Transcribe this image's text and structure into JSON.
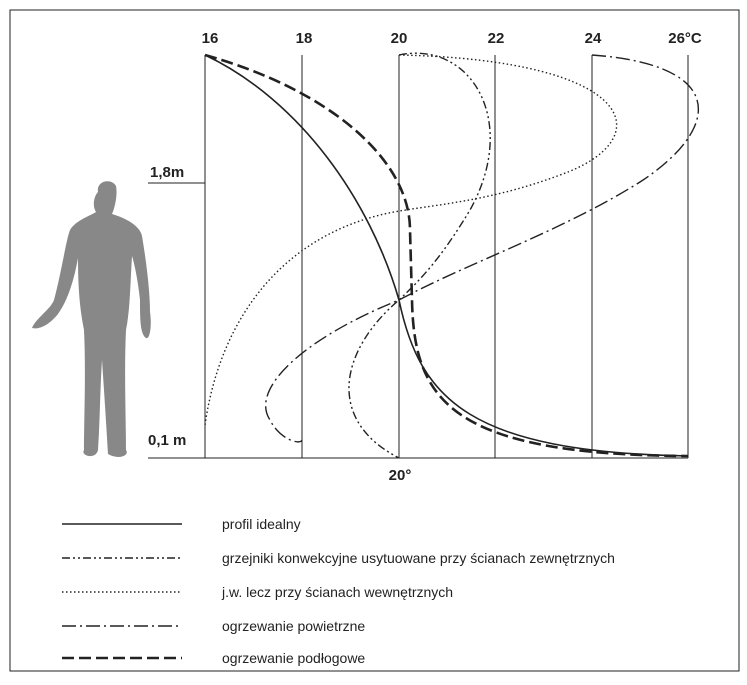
{
  "axis": {
    "top_ticks": [
      "16",
      "18",
      "20",
      "22",
      "24",
      "26°C"
    ],
    "height_labels": [
      "1,8m",
      "0,1 m"
    ],
    "bottom_label": "20°"
  },
  "legend": [
    "profil idealny",
    "grzejniki konwekcyjne usytuowane przy ścianach zewnętrznych",
    "j.w. lecz przy ścianach wewnętrznych",
    "ogrzewanie powietrzne",
    "ogrzewanie podłogowe"
  ]
}
